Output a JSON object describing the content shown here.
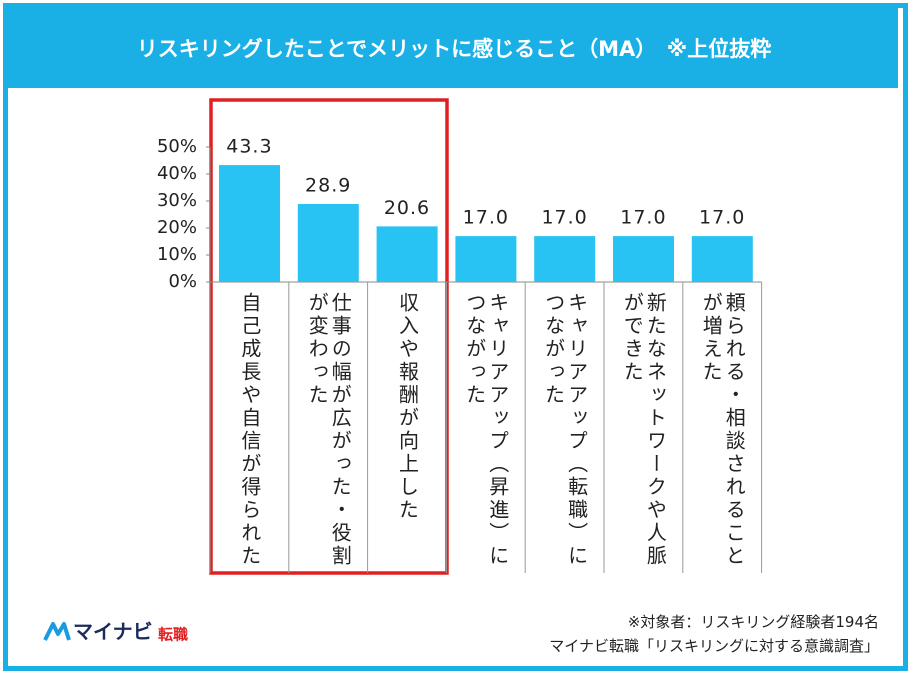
{
  "chart_data": {
    "type": "bar",
    "title": "リスキリングしたことでメリットに感じること（MA）　※上位抜粋",
    "categories": [
      "自己成長や自信が得られた",
      "仕事の幅が広がった・役割が変わった",
      "収入や報酬が向上した",
      "キャリアアップ（昇進）につながった",
      "キャリアアップ（転職）につながった",
      "新たなネットワークや人脈ができた",
      "頼られる・相談されることが増えた"
    ],
    "values": [
      43.3,
      28.9,
      20.6,
      17.0,
      17.0,
      17.0,
      17.0
    ],
    "value_labels": [
      "43.3",
      "28.9",
      "20.6",
      "17.0",
      "17.0",
      "17.0",
      "17.0"
    ],
    "color": "#29c3f3",
    "ylim": [
      0,
      50
    ],
    "yticks": [
      {
        "value": 0,
        "label": "0%"
      },
      {
        "value": 10,
        "label": "10%"
      },
      {
        "value": 20,
        "label": "20%"
      },
      {
        "value": 30,
        "label": "30%"
      },
      {
        "value": 40,
        "label": "40%"
      },
      {
        "value": 50,
        "label": "50%"
      }
    ]
  },
  "footer": {
    "logo": "マイナビ",
    "logo_accent": "転職",
    "notes": [
      "※対象者：リスキリング経験者194名",
      "マイナビ転職「リスキリングに対する意識調査」"
    ]
  }
}
